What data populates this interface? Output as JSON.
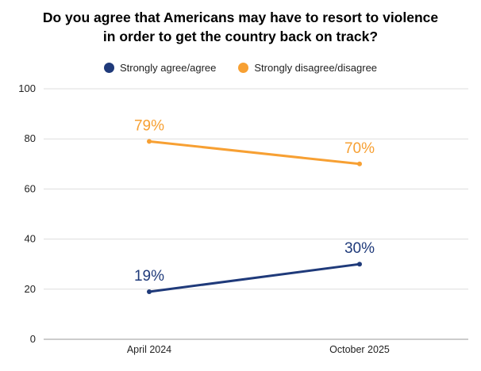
{
  "chart_data": {
    "type": "line",
    "title_lines": [
      "Do you agree that Americans may have to resort to violence",
      "in order to get the country back on track?"
    ],
    "categories": [
      "April 2024",
      "October 2025"
    ],
    "series": [
      {
        "name": "Strongly agree/agree",
        "color": "#1f3a7a",
        "values": [
          19,
          30
        ],
        "labels": [
          "19%",
          "30%"
        ]
      },
      {
        "name": "Strongly disagree/disagree",
        "color": "#f7a033",
        "values": [
          79,
          70
        ],
        "labels": [
          "79%",
          "70%"
        ]
      }
    ],
    "ylim": [
      0,
      100
    ],
    "yticks": [
      "0",
      "20",
      "40",
      "60",
      "80",
      "100"
    ],
    "grid": true,
    "legend": "top-center"
  }
}
